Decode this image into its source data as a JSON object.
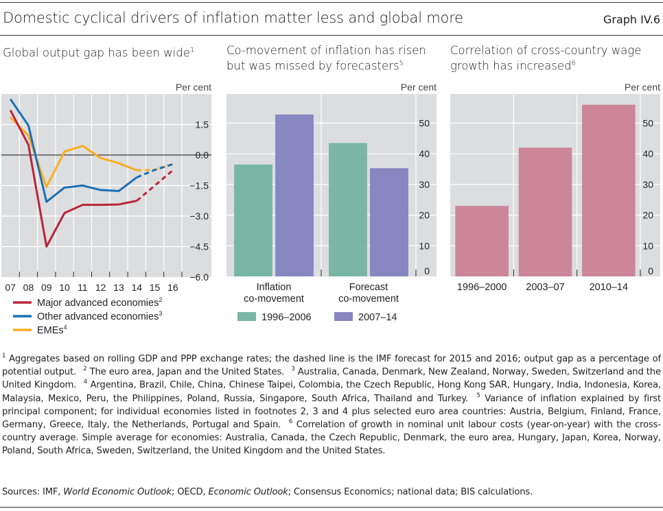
{
  "header": {
    "title": "Domestic cyclical drivers of inflation matter less and global more",
    "graph_id": "Graph IV.6"
  },
  "chart_data": [
    {
      "type": "line",
      "title": "Global output gap has been wide",
      "title_note": "1",
      "ylabel": "Per cent",
      "x": [
        "07",
        "08",
        "09",
        "10",
        "11",
        "12",
        "13",
        "14",
        "15",
        "16"
      ],
      "ylim": [
        -6.0,
        3.0
      ],
      "yticks": [
        "1.5",
        "0.0",
        "−1.5",
        "−3.0",
        "−4.5",
        "−6.0"
      ],
      "ytick_values": [
        1.5,
        0.0,
        -1.5,
        -3.0,
        -4.5,
        -6.0
      ],
      "forecast_from_index": 7,
      "series": [
        {
          "name": "Major advanced economies",
          "note": "2",
          "color": "#b8243a",
          "values": [
            2.2,
            0.5,
            -4.5,
            -2.85,
            -2.45,
            -2.45,
            -2.43,
            -2.25,
            -1.5,
            -0.75
          ]
        },
        {
          "name": "Other advanced economies",
          "note": "3",
          "color": "#1c6fb5",
          "values": [
            2.75,
            1.45,
            -2.3,
            -1.6,
            -1.5,
            -1.72,
            -1.77,
            -1.1,
            -0.73,
            -0.45
          ]
        },
        {
          "name": "EMEs",
          "note": "4",
          "color": "#f9ad1b",
          "values": [
            1.85,
            0.95,
            -1.57,
            0.17,
            0.45,
            -0.15,
            -0.4,
            -0.75,
            -0.73,
            -0.45
          ]
        }
      ],
      "grid": true,
      "legend": "bottom-left"
    },
    {
      "type": "bar",
      "title_lines": [
        "Co-movement of inflation has risen",
        "but was missed by forecasters"
      ],
      "title_note": "5",
      "ylabel": "Per cent",
      "categories": [
        [
          "Inflation",
          "co-movement"
        ],
        [
          "Forecast",
          "co-movement"
        ]
      ],
      "ylim": [
        0,
        58
      ],
      "yticks": [
        "0",
        "10",
        "20",
        "30",
        "40",
        "50"
      ],
      "ytick_values": [
        0,
        10,
        20,
        30,
        40,
        50
      ],
      "series": [
        {
          "name": "1996–2006",
          "color": "#7ab6a5",
          "values": [
            36.5,
            43.5
          ]
        },
        {
          "name": "2007–14",
          "color": "#8787c1",
          "values": [
            52.8,
            35.3
          ]
        }
      ],
      "grid": true,
      "legend": "bottom"
    },
    {
      "type": "bar",
      "title_lines": [
        "Correlation of cross-country wage",
        "growth has increased"
      ],
      "title_note": "6",
      "ylabel": "Per cent",
      "categories": [
        "1996–2000",
        "2003–07",
        "2010–14"
      ],
      "ylim": [
        0,
        58
      ],
      "yticks": [
        "0",
        "10",
        "20",
        "30",
        "40",
        "50"
      ],
      "ytick_values": [
        0,
        10,
        20,
        30,
        40,
        50
      ],
      "series": [
        {
          "name": "Correlation",
          "color": "#cd8598",
          "values": [
            23.0,
            42.0,
            56.0
          ]
        }
      ],
      "grid": true,
      "legend": "none"
    }
  ],
  "footnotes": [
    {
      "num": "1",
      "text": "Aggregates based on rolling GDP and PPP exchange rates; the dashed line is the IMF forecast for 2015 and 2016; output gap as a percentage of potential output."
    },
    {
      "num": "2",
      "text": "The euro area, Japan and the United States."
    },
    {
      "num": "3",
      "text": "Australia, Canada, Denmark, New Zealand, Norway, Sweden, Switzerland and the United Kingdom."
    },
    {
      "num": "4",
      "text": "Argentina, Brazil, Chile, China, Chinese Taipei, Colombia, the Czech Republic, Hong Kong SAR, Hungary, India, Indonesia, Korea, Malaysia, Mexico, Peru, the Philippines, Poland, Russia, Singapore, South Africa, Thailand and Turkey."
    },
    {
      "num": "5",
      "text": "Variance of inflation explained by first principal component; for individual economies listed in footnotes 2, 3 and 4 plus selected euro area countries: Austria, Belgium, Finland, France, Germany, Greece, Italy, the Netherlands, Portugal and Spain."
    },
    {
      "num": "6",
      "text": "Correlation of growth in nominal unit labour costs (year-on-year) with the cross-country average. Simple average for economies: Australia, Canada, the Czech Republic, Denmark, the euro area, Hungary, Japan, Korea, Norway, Poland, South Africa, Sweden, Switzerland, the United Kingdom and the United States."
    }
  ],
  "sources": {
    "prefix": "Sources: IMF, ",
    "italic1": "World Economic Outlook",
    "mid": "; OECD, ",
    "italic2": "Economic Outlook",
    "suffix": "; Consensus Economics; national data; BIS calculations."
  }
}
